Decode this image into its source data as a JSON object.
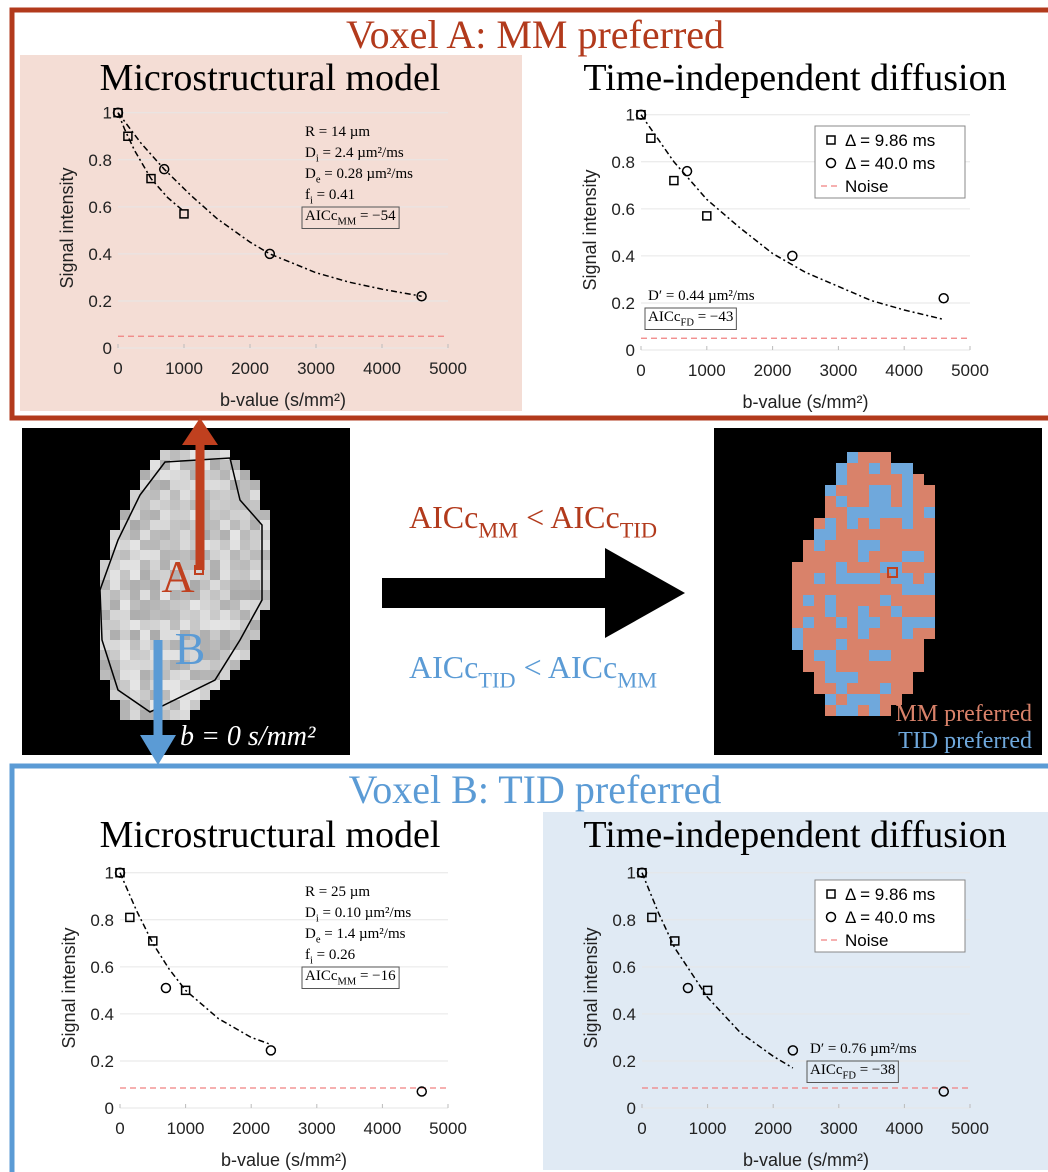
{
  "voxel_a_title": "Voxel A: MM preferred",
  "voxel_b_title": "Voxel B: TID preferred",
  "middle": {
    "marker_a": "A",
    "marker_b": "B",
    "image_label": "b = 0 s/mm²",
    "rule_mm": [
      "AICc",
      "MM",
      " < AICc",
      "TID"
    ],
    "rule_tid": [
      "AICc",
      "TID",
      " < AICc",
      "MM"
    ],
    "legend": [
      "MM preferred",
      "TID preferred"
    ]
  },
  "chart_data": [
    {
      "type": "scatter",
      "title": "Microstructural model",
      "xlabel": "b-value (s/mm²)",
      "ylabel": "Signal intensity",
      "xlim": [
        0,
        5000
      ],
      "ylim": [
        0,
        1.02
      ],
      "xticks": [
        0,
        1000,
        2000,
        3000,
        4000,
        5000
      ],
      "yticks": [
        0,
        0.2,
        0.4,
        0.6,
        0.8,
        1
      ],
      "grid": true,
      "series": [
        {
          "marker": "square",
          "color": "#000000",
          "x": [
            0,
            150,
            500,
            1000
          ],
          "values": [
            1,
            0.9,
            0.72,
            0.57
          ]
        },
        {
          "marker": "circle",
          "color": "#000000",
          "x": [
            0,
            700,
            2300,
            4600
          ],
          "values": [
            1,
            0.76,
            0.4,
            0.22
          ]
        }
      ],
      "fits": [
        {
          "color": "#000000",
          "x": [
            0,
            100,
            250,
            500,
            750,
            1000
          ],
          "values": [
            1,
            0.93,
            0.84,
            0.72,
            0.64,
            0.58
          ]
        },
        {
          "color": "#000000",
          "x": [
            0,
            350,
            700,
            1100,
            1500,
            2000,
            2300,
            3000,
            3500,
            4000,
            4600
          ],
          "values": [
            1,
            0.87,
            0.76,
            0.65,
            0.55,
            0.45,
            0.4,
            0.32,
            0.28,
            0.25,
            0.22
          ]
        }
      ],
      "noise": {
        "color": "#f08080",
        "value": 0.05
      },
      "annotations": [
        [
          "R = 14 µm"
        ],
        [
          "D",
          "i",
          " = 2.4 µm²/ms"
        ],
        [
          "D",
          "e",
          " = 0.28 µm²/ms"
        ],
        [
          "f",
          "i",
          " = 0.41"
        ],
        [
          "AICc",
          "MM",
          " = −54"
        ]
      ]
    },
    {
      "type": "scatter",
      "title": "Time-independent diffusion",
      "xlabel": "b-value (s/mm²)",
      "ylabel": "Signal intensity",
      "xlim": [
        0,
        5000
      ],
      "ylim": [
        0,
        1.02
      ],
      "xticks": [
        0,
        1000,
        2000,
        3000,
        4000,
        5000
      ],
      "yticks": [
        0,
        0.2,
        0.4,
        0.6,
        0.8,
        1
      ],
      "grid": true,
      "series": [
        {
          "name": "Δ = 9.86 ms",
          "marker": "square",
          "color": "#000000",
          "x": [
            0,
            150,
            500,
            1000
          ],
          "values": [
            1,
            0.9,
            0.72,
            0.57
          ]
        },
        {
          "name": "Δ = 40.0 ms",
          "marker": "circle",
          "color": "#000000",
          "x": [
            0,
            700,
            2300,
            4600
          ],
          "values": [
            1,
            0.76,
            0.4,
            0.22
          ]
        }
      ],
      "fits": [
        {
          "color": "#000000",
          "x": [
            0,
            500,
            1000,
            1500,
            2000,
            2500,
            3000,
            3500,
            4000,
            4600
          ],
          "values": [
            1,
            0.8,
            0.64,
            0.52,
            0.41,
            0.33,
            0.27,
            0.21,
            0.17,
            0.13
          ]
        }
      ],
      "noise": {
        "name": "Noise",
        "color": "#f08080",
        "value": 0.05
      },
      "annotations": [
        [
          "D′ = 0.44 µm²/ms"
        ],
        [
          "AICc",
          "FD",
          " = −43"
        ]
      ]
    },
    {
      "type": "scatter",
      "title": "Microstructural model",
      "xlabel": "b-value (s/mm²)",
      "ylabel": "Signal intensity",
      "xlim": [
        0,
        5000
      ],
      "ylim": [
        0,
        1.02
      ],
      "xticks": [
        0,
        1000,
        2000,
        3000,
        4000,
        5000
      ],
      "yticks": [
        0,
        0.2,
        0.4,
        0.6,
        0.8,
        1
      ],
      "grid": true,
      "series": [
        {
          "marker": "square",
          "color": "#000000",
          "x": [
            0,
            150,
            500,
            1000
          ],
          "values": [
            1,
            0.81,
            0.71,
            0.5
          ]
        },
        {
          "marker": "circle",
          "color": "#000000",
          "x": [
            0,
            700,
            2300,
            4600
          ],
          "values": [
            1,
            0.51,
            0.245,
            0.07
          ]
        }
      ],
      "fits": [
        {
          "color": "#000000",
          "x": [
            0,
            250,
            500,
            750,
            1000,
            1500,
            2000,
            2300
          ],
          "values": [
            1,
            0.84,
            0.7,
            0.59,
            0.5,
            0.38,
            0.3,
            0.27
          ]
        }
      ],
      "noise": {
        "color": "#f08080",
        "value": 0.085
      },
      "annotations": [
        [
          "R = 25 µm"
        ],
        [
          "D",
          "i",
          " = 0.10 µm²/ms"
        ],
        [
          "D",
          "e",
          " = 1.4 µm²/ms"
        ],
        [
          "f",
          "i",
          " = 0.26"
        ],
        [
          "AICc",
          "MM",
          " = −16"
        ]
      ]
    },
    {
      "type": "scatter",
      "title": "Time-independent diffusion",
      "xlabel": "b-value (s/mm²)",
      "ylabel": "Signal intensity",
      "xlim": [
        0,
        5000
      ],
      "ylim": [
        0,
        1.02
      ],
      "xticks": [
        0,
        1000,
        2000,
        3000,
        4000,
        5000
      ],
      "yticks": [
        0,
        0.2,
        0.4,
        0.6,
        0.8,
        1
      ],
      "grid": true,
      "series": [
        {
          "name": "Δ = 9.86 ms",
          "marker": "square",
          "color": "#000000",
          "x": [
            0,
            150,
            500,
            1000
          ],
          "values": [
            1,
            0.81,
            0.71,
            0.5
          ]
        },
        {
          "name": "Δ = 40.0 ms",
          "marker": "circle",
          "color": "#000000",
          "x": [
            0,
            700,
            2300,
            4600
          ],
          "values": [
            1,
            0.51,
            0.245,
            0.07
          ]
        }
      ],
      "fits": [
        {
          "color": "#000000",
          "x": [
            0,
            250,
            500,
            1000,
            1500,
            2000,
            2300
          ],
          "values": [
            1,
            0.83,
            0.68,
            0.47,
            0.32,
            0.22,
            0.17
          ]
        }
      ],
      "noise": {
        "name": "Noise",
        "color": "#f08080",
        "value": 0.085
      },
      "annotations": [
        [
          "D′ = 0.76 µm²/ms"
        ],
        [
          "AICc",
          "FD",
          " = −38"
        ]
      ]
    }
  ]
}
